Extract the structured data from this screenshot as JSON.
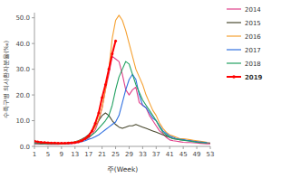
{
  "chart_data": {
    "type": "line",
    "x_label": "주(Week)",
    "y_label": "수족구병 의사환자분율(‰)",
    "x": [
      1,
      2,
      3,
      4,
      5,
      6,
      7,
      8,
      9,
      10,
      11,
      12,
      13,
      14,
      15,
      16,
      17,
      18,
      19,
      20,
      21,
      22,
      23,
      24,
      25,
      26,
      27,
      28,
      29,
      30,
      31,
      32,
      33,
      34,
      35,
      36,
      37,
      38,
      39,
      40,
      41,
      42,
      43,
      44,
      45,
      46,
      47,
      48,
      49,
      50,
      51,
      52,
      53
    ],
    "xlim": [
      1,
      53
    ],
    "xticks": [
      1,
      5,
      9,
      13,
      17,
      21,
      25,
      29,
      33,
      37,
      41,
      45,
      49,
      53
    ],
    "ylim": [
      0,
      52
    ],
    "yticks": [
      {
        "value": 0,
        "label": "0.0"
      },
      {
        "value": 10,
        "label": "10.0"
      },
      {
        "value": 20,
        "label": "20.0"
      },
      {
        "value": 30,
        "label": "30.0"
      },
      {
        "value": 40,
        "label": "40.0"
      },
      {
        "value": 50,
        "label": "50.0"
      }
    ],
    "grid": false,
    "legend": "upper right",
    "series": [
      {
        "name": "2014",
        "color": "#e0408a",
        "values": [
          1.0,
          1.0,
          0.9,
          0.9,
          0.8,
          0.8,
          0.8,
          0.8,
          0.9,
          0.9,
          1.0,
          1.1,
          1.2,
          1.5,
          2.0,
          2.6,
          3.2,
          4.5,
          6.5,
          10,
          15,
          22,
          28,
          35,
          34,
          33,
          28,
          22,
          20,
          22,
          23,
          17,
          16,
          15,
          12,
          10,
          8,
          6,
          5,
          3.5,
          2.5,
          2.2,
          2,
          1.8,
          1.6,
          1.5,
          1.5,
          1.4,
          1.3,
          1.2,
          1.1,
          1.0,
          1.0
        ]
      },
      {
        "name": "2015",
        "color": "#4a4a30",
        "values": [
          1.2,
          1.1,
          1.0,
          1.0,
          0.9,
          0.9,
          0.9,
          1.0,
          1.0,
          1.1,
          1.3,
          1.5,
          1.8,
          2.2,
          2.8,
          3.5,
          4.5,
          6,
          8,
          10,
          12,
          13,
          12,
          10,
          8.5,
          7.5,
          7,
          7.5,
          8,
          8,
          8.5,
          8,
          7.5,
          7,
          6.5,
          6,
          5.5,
          5,
          4.5,
          4,
          3.5,
          3,
          2.8,
          2.6,
          2.5,
          2.3,
          2.2,
          2,
          1.8,
          1.6,
          1.5,
          1.4,
          1.3
        ]
      },
      {
        "name": "2016",
        "color": "#f5a030",
        "values": [
          1.5,
          1.4,
          1.3,
          1.2,
          1.1,
          1.0,
          1.0,
          1.0,
          1.0,
          1.1,
          1.2,
          1.4,
          1.7,
          2.0,
          2.5,
          3.2,
          4.2,
          5.5,
          7.5,
          10.5,
          15,
          22,
          30,
          42,
          49,
          51,
          49,
          45,
          40,
          35,
          30,
          27,
          24,
          20,
          17,
          14,
          12,
          9,
          7,
          5.5,
          4.5,
          4,
          3.5,
          3,
          3,
          2.8,
          2.6,
          2.4,
          2.2,
          2,
          1.8,
          1.6,
          null
        ]
      },
      {
        "name": "2017",
        "color": "#3070e0",
        "values": [
          1.5,
          1.4,
          1.3,
          1.2,
          1.1,
          1.0,
          1.0,
          1.0,
          1.0,
          1.0,
          1.1,
          1.2,
          1.4,
          1.6,
          1.9,
          2.2,
          2.7,
          3.2,
          3.8,
          4.5,
          5.5,
          6.5,
          7.5,
          8.5,
          9.5,
          12,
          17,
          22,
          26,
          28,
          26,
          20,
          16,
          15,
          13,
          11,
          10,
          8,
          6,
          5,
          4,
          3.5,
          3,
          2.8,
          2.6,
          2.4,
          2.2,
          2,
          1.8,
          1.7,
          1.6,
          1.5,
          null
        ]
      },
      {
        "name": "2018",
        "color": "#20a060",
        "values": [
          1.4,
          1.3,
          1.2,
          1.1,
          1.0,
          1.0,
          1.0,
          1.0,
          1.0,
          1.1,
          1.2,
          1.3,
          1.5,
          1.8,
          2.2,
          2.8,
          3.5,
          4.5,
          5.5,
          7,
          8.5,
          10,
          12,
          16,
          22,
          27,
          30,
          33,
          32,
          28,
          24,
          21,
          18,
          16,
          14,
          12,
          10,
          7.5,
          5.5,
          4.5,
          3.5,
          3,
          2.8,
          2.6,
          2.4,
          2.2,
          2,
          1.8,
          1.6,
          1.5,
          1.4,
          1.3,
          null
        ]
      },
      {
        "name": "2019",
        "color": "#ff0000",
        "marker": "circle",
        "line_style": "solid",
        "values": [
          2.0,
          1.8,
          1.6,
          1.5,
          1.4,
          1.3,
          1.3,
          1.2,
          1.2,
          1.2,
          1.3,
          1.4,
          1.5,
          1.8,
          2.2,
          3,
          4,
          6,
          9,
          13,
          19,
          24,
          30,
          36,
          41,
          null,
          null,
          null,
          null,
          null,
          null,
          null,
          null,
          null,
          null,
          null,
          null,
          null,
          null,
          null,
          null,
          null,
          null,
          null,
          null,
          null,
          null,
          null,
          null,
          null,
          null,
          null,
          null
        ]
      }
    ]
  }
}
